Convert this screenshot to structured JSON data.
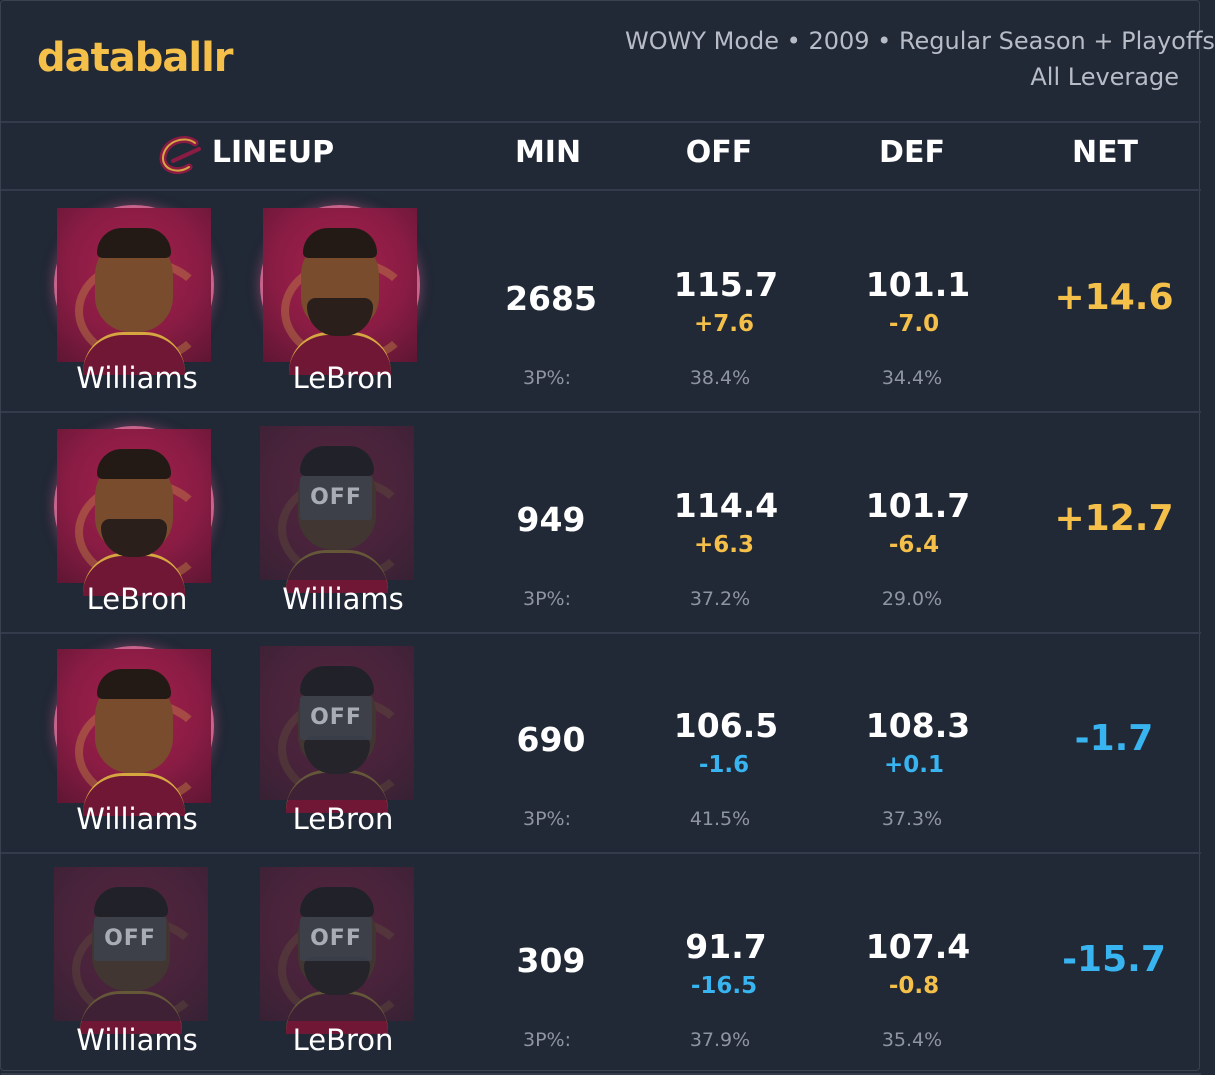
{
  "header": {
    "logo": "databallr",
    "subtitle_line1": "WOWY Mode • 2009 • Regular Season + Playoffs",
    "subtitle_line2": "All Leverage"
  },
  "columns": {
    "lineup": "LINEUP",
    "min": "MIN",
    "off": "OFF",
    "def": "DEF",
    "net": "NET"
  },
  "team_icon": "cavaliers-c-logo-icon",
  "colors": {
    "background": "#212836",
    "positive": "#f4c04a",
    "negative": "#38b4f0",
    "team_maroon": "#8a1c44"
  },
  "rows": [
    {
      "p1": {
        "name": "Williams",
        "status": "on",
        "off_label": ""
      },
      "p2": {
        "name": "LeBron",
        "status": "on",
        "off_label": ""
      },
      "min": "2685",
      "off": "115.7",
      "off_delta": "+7.6",
      "def": "101.1",
      "def_delta": "-7.0",
      "net": "+14.6",
      "tp_label": "3P%:",
      "off_3p": "38.4%",
      "def_3p": "34.4%"
    },
    {
      "p1": {
        "name": "LeBron",
        "status": "on",
        "off_label": ""
      },
      "p2": {
        "name": "Williams",
        "status": "off",
        "off_label": "OFF"
      },
      "min": "949",
      "off": "114.4",
      "off_delta": "+6.3",
      "def": "101.7",
      "def_delta": "-6.4",
      "net": "+12.7",
      "tp_label": "3P%:",
      "off_3p": "37.2%",
      "def_3p": "29.0%"
    },
    {
      "p1": {
        "name": "Williams",
        "status": "on",
        "off_label": ""
      },
      "p2": {
        "name": "LeBron",
        "status": "off",
        "off_label": "OFF"
      },
      "min": "690",
      "off": "106.5",
      "off_delta": "-1.6",
      "def": "108.3",
      "def_delta": "+0.1",
      "net": "-1.7",
      "tp_label": "3P%:",
      "off_3p": "41.5%",
      "def_3p": "37.3%"
    },
    {
      "p1": {
        "name": "Williams",
        "status": "off",
        "off_label": "OFF"
      },
      "p2": {
        "name": "LeBron",
        "status": "off",
        "off_label": "OFF"
      },
      "min": "309",
      "off": "91.7",
      "off_delta": "-16.5",
      "def": "107.4",
      "def_delta": "-0.8",
      "net": "-15.7",
      "tp_label": "3P%:",
      "off_3p": "37.9%",
      "def_3p": "35.4%"
    }
  ]
}
